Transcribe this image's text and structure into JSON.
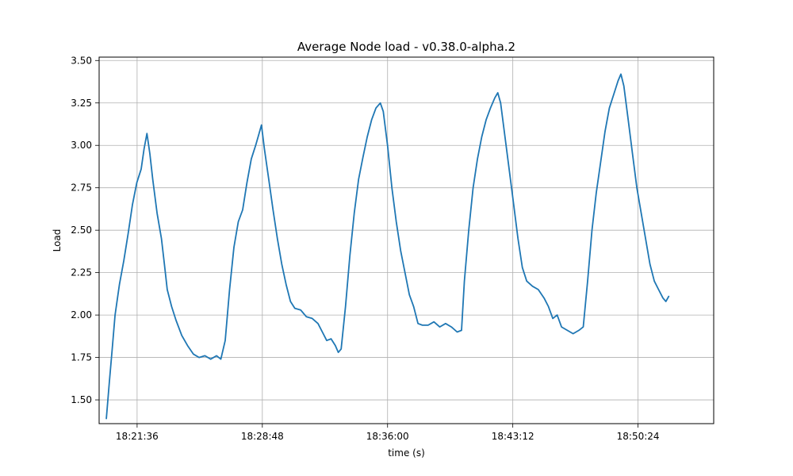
{
  "chart_data": {
    "type": "line",
    "title": "Average Node load  -  v0.38.0-alpha.2",
    "xlabel": "time (s)",
    "ylabel": "Load",
    "x_tick_labels": [
      "18:21:36",
      "18:28:48",
      "18:36:00",
      "18:43:12",
      "18:50:24"
    ],
    "x_range": [
      "18:19:25",
      "18:54:45"
    ],
    "ylim": [
      1.36,
      3.52
    ],
    "y_ticks": [
      1.5,
      1.75,
      2.0,
      2.25,
      2.5,
      2.75,
      3.0,
      3.25,
      3.5
    ],
    "grid": true,
    "series": [
      {
        "color": "#1f77b4",
        "points": [
          [
            "18:19:50",
            1.39
          ],
          [
            "18:20:00",
            1.6
          ],
          [
            "18:20:10",
            1.8
          ],
          [
            "18:20:20",
            2.0
          ],
          [
            "18:20:35",
            2.18
          ],
          [
            "18:20:50",
            2.32
          ],
          [
            "18:21:05",
            2.48
          ],
          [
            "18:21:20",
            2.65
          ],
          [
            "18:21:35",
            2.78
          ],
          [
            "18:21:50",
            2.86
          ],
          [
            "18:22:00",
            2.98
          ],
          [
            "18:22:10",
            3.07
          ],
          [
            "18:22:20",
            2.95
          ],
          [
            "18:22:30",
            2.8
          ],
          [
            "18:22:45",
            2.6
          ],
          [
            "18:23:00",
            2.45
          ],
          [
            "18:23:10",
            2.3
          ],
          [
            "18:23:20",
            2.15
          ],
          [
            "18:23:35",
            2.05
          ],
          [
            "18:23:50",
            1.97
          ],
          [
            "18:24:10",
            1.88
          ],
          [
            "18:24:30",
            1.82
          ],
          [
            "18:24:50",
            1.77
          ],
          [
            "18:25:10",
            1.75
          ],
          [
            "18:25:30",
            1.76
          ],
          [
            "18:25:50",
            1.74
          ],
          [
            "18:26:10",
            1.76
          ],
          [
            "18:26:25",
            1.74
          ],
          [
            "18:26:40",
            1.85
          ],
          [
            "18:26:55",
            2.15
          ],
          [
            "18:27:10",
            2.4
          ],
          [
            "18:27:25",
            2.55
          ],
          [
            "18:27:40",
            2.62
          ],
          [
            "18:27:55",
            2.78
          ],
          [
            "18:28:10",
            2.92
          ],
          [
            "18:28:25",
            3.0
          ],
          [
            "18:28:35",
            3.06
          ],
          [
            "18:28:45",
            3.12
          ],
          [
            "18:28:55",
            2.98
          ],
          [
            "18:29:10",
            2.8
          ],
          [
            "18:29:25",
            2.62
          ],
          [
            "18:29:40",
            2.45
          ],
          [
            "18:29:55",
            2.3
          ],
          [
            "18:30:10",
            2.18
          ],
          [
            "18:30:25",
            2.08
          ],
          [
            "18:30:40",
            2.04
          ],
          [
            "18:31:00",
            2.03
          ],
          [
            "18:31:20",
            1.99
          ],
          [
            "18:31:40",
            1.98
          ],
          [
            "18:32:00",
            1.95
          ],
          [
            "18:32:15",
            1.9
          ],
          [
            "18:32:30",
            1.85
          ],
          [
            "18:32:45",
            1.86
          ],
          [
            "18:33:00",
            1.82
          ],
          [
            "18:33:10",
            1.78
          ],
          [
            "18:33:20",
            1.8
          ],
          [
            "18:33:35",
            2.05
          ],
          [
            "18:33:50",
            2.35
          ],
          [
            "18:34:05",
            2.6
          ],
          [
            "18:34:20",
            2.8
          ],
          [
            "18:34:35",
            2.93
          ],
          [
            "18:34:50",
            3.05
          ],
          [
            "18:35:05",
            3.15
          ],
          [
            "18:35:20",
            3.22
          ],
          [
            "18:35:35",
            3.25
          ],
          [
            "18:35:45",
            3.2
          ],
          [
            "18:36:00",
            3.0
          ],
          [
            "18:36:15",
            2.75
          ],
          [
            "18:36:30",
            2.55
          ],
          [
            "18:36:45",
            2.38
          ],
          [
            "18:37:00",
            2.25
          ],
          [
            "18:37:15",
            2.12
          ],
          [
            "18:37:30",
            2.05
          ],
          [
            "18:37:45",
            1.95
          ],
          [
            "18:38:00",
            1.94
          ],
          [
            "18:38:20",
            1.94
          ],
          [
            "18:38:40",
            1.96
          ],
          [
            "18:39:00",
            1.93
          ],
          [
            "18:39:20",
            1.95
          ],
          [
            "18:39:40",
            1.93
          ],
          [
            "18:40:00",
            1.9
          ],
          [
            "18:40:15",
            1.91
          ],
          [
            "18:40:25",
            2.2
          ],
          [
            "18:40:40",
            2.5
          ],
          [
            "18:40:55",
            2.75
          ],
          [
            "18:41:10",
            2.92
          ],
          [
            "18:41:25",
            3.05
          ],
          [
            "18:41:40",
            3.15
          ],
          [
            "18:41:55",
            3.22
          ],
          [
            "18:42:10",
            3.28
          ],
          [
            "18:42:20",
            3.31
          ],
          [
            "18:42:30",
            3.25
          ],
          [
            "18:42:45",
            3.05
          ],
          [
            "18:43:00",
            2.85
          ],
          [
            "18:43:15",
            2.65
          ],
          [
            "18:43:30",
            2.45
          ],
          [
            "18:43:45",
            2.28
          ],
          [
            "18:44:00",
            2.2
          ],
          [
            "18:44:20",
            2.17
          ],
          [
            "18:44:40",
            2.15
          ],
          [
            "18:45:00",
            2.1
          ],
          [
            "18:45:15",
            2.05
          ],
          [
            "18:45:30",
            1.98
          ],
          [
            "18:45:45",
            2.0
          ],
          [
            "18:46:00",
            1.93
          ],
          [
            "18:46:20",
            1.91
          ],
          [
            "18:46:40",
            1.89
          ],
          [
            "18:47:00",
            1.91
          ],
          [
            "18:47:15",
            1.93
          ],
          [
            "18:47:30",
            2.2
          ],
          [
            "18:47:45",
            2.5
          ],
          [
            "18:48:00",
            2.72
          ],
          [
            "18:48:15",
            2.9
          ],
          [
            "18:48:30",
            3.08
          ],
          [
            "18:48:45",
            3.22
          ],
          [
            "18:49:00",
            3.3
          ],
          [
            "18:49:15",
            3.38
          ],
          [
            "18:49:25",
            3.42
          ],
          [
            "18:49:35",
            3.35
          ],
          [
            "18:49:50",
            3.15
          ],
          [
            "18:50:05",
            2.95
          ],
          [
            "18:50:20",
            2.75
          ],
          [
            "18:50:35",
            2.6
          ],
          [
            "18:50:50",
            2.45
          ],
          [
            "18:51:05",
            2.3
          ],
          [
            "18:51:20",
            2.2
          ],
          [
            "18:51:35",
            2.15
          ],
          [
            "18:51:50",
            2.1
          ],
          [
            "18:52:00",
            2.08
          ],
          [
            "18:52:10",
            2.11
          ]
        ]
      }
    ]
  }
}
